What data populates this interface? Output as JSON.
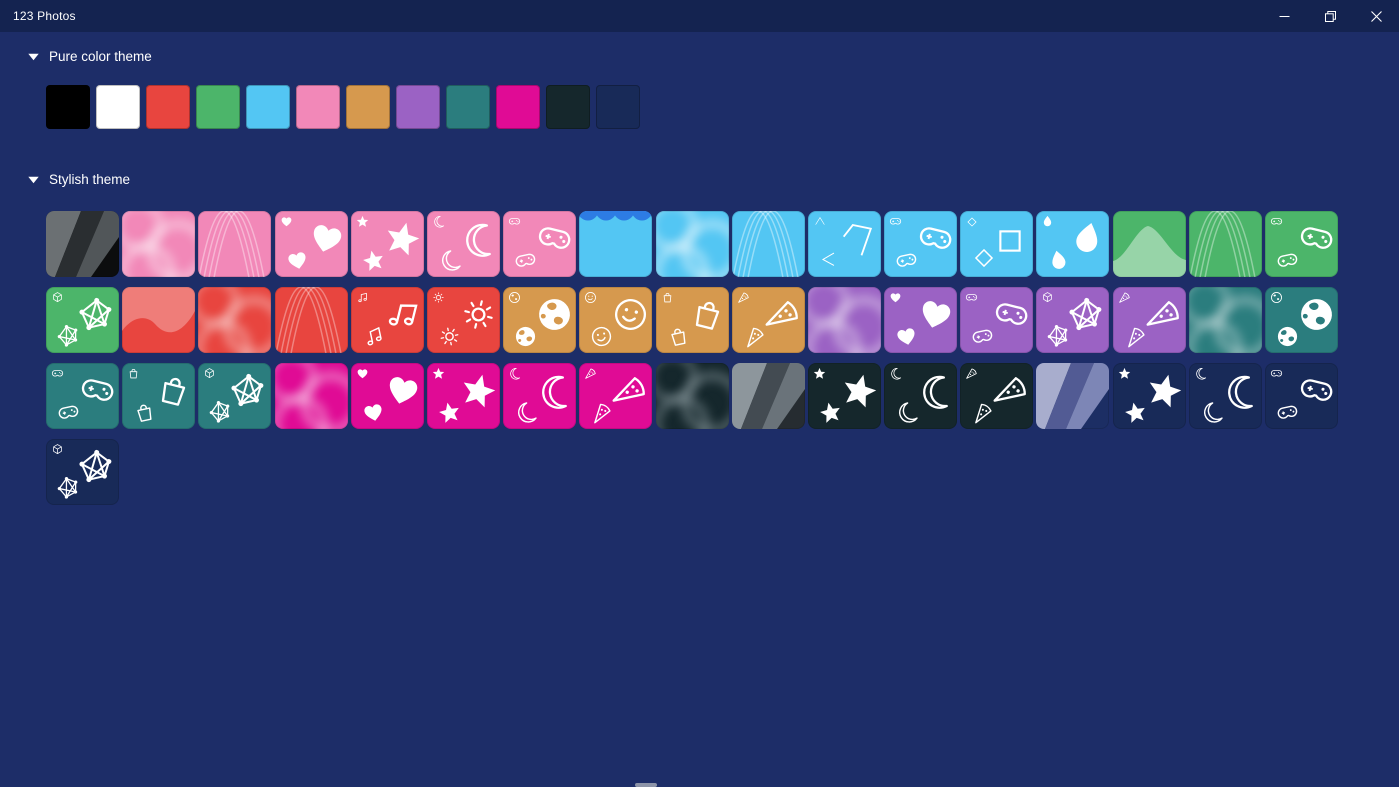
{
  "window": {
    "title": "123 Photos",
    "controls": [
      {
        "name": "minimize"
      },
      {
        "name": "restore"
      },
      {
        "name": "close"
      }
    ]
  },
  "sections": {
    "pure": {
      "label": "Pure color theme"
    },
    "stylish": {
      "label": "Stylish theme"
    }
  },
  "colors": {
    "background": "#1d2d68",
    "titlebar": "#142350",
    "text": "#ffffff",
    "scrollbar": "#8d94a8"
  },
  "pure_colors": [
    {
      "name": "black",
      "hex": "#000000"
    },
    {
      "name": "white",
      "hex": "#ffffff"
    },
    {
      "name": "red",
      "hex": "#e8453f"
    },
    {
      "name": "green",
      "hex": "#4cb56a"
    },
    {
      "name": "sky-blue",
      "hex": "#53c6f3"
    },
    {
      "name": "pink",
      "hex": "#f288b8"
    },
    {
      "name": "orange",
      "hex": "#d6994e"
    },
    {
      "name": "purple",
      "hex": "#9b62c4"
    },
    {
      "name": "teal",
      "hex": "#2b7d7e"
    },
    {
      "name": "magenta",
      "hex": "#e00b95"
    },
    {
      "name": "dark-teal",
      "hex": "#15272c"
    },
    {
      "name": "dark-navy",
      "hex": "#182a58"
    }
  ],
  "stylish_tiles": [
    {
      "name": "black-triangles",
      "bg": "#0c0d0e",
      "pattern": "triangles",
      "tri": [
        "#6b7073",
        "#2a2e31",
        "#515659"
      ]
    },
    {
      "name": "pink-bokeh",
      "bg": "#f288b8",
      "pattern": "bokeh",
      "fg": "rgba(255,255,255,0.38)"
    },
    {
      "name": "pink-waves",
      "bg": "#f288b8",
      "pattern": "waves",
      "fg": "rgba(255,255,255,0.38)"
    },
    {
      "name": "pink-hearts",
      "bg": "#f288b8",
      "pattern": "icons",
      "icon": "heart",
      "fg": "#ffffff"
    },
    {
      "name": "pink-stars",
      "bg": "#f288b8",
      "pattern": "icons",
      "icon": "star",
      "fg": "#ffffff"
    },
    {
      "name": "pink-moons",
      "bg": "#f288b8",
      "pattern": "icons",
      "icon": "moon",
      "fg": "#ffffff"
    },
    {
      "name": "pink-controllers",
      "bg": "#f288b8",
      "pattern": "icons",
      "icon": "controller",
      "fg": "#ffffff"
    },
    {
      "name": "blue-scallops",
      "bg": "#53c6f3",
      "pattern": "scallop",
      "accent": "#2d7ce4"
    },
    {
      "name": "blue-bokeh",
      "bg": "#53c6f3",
      "pattern": "bokeh",
      "fg": "rgba(255,255,255,0.4)"
    },
    {
      "name": "blue-waves",
      "bg": "#53c6f3",
      "pattern": "waves",
      "fg": "rgba(255,255,255,0.4)"
    },
    {
      "name": "blue-lines",
      "bg": "#53c6f3",
      "pattern": "lines",
      "fg": "#ffffff"
    },
    {
      "name": "blue-controllers",
      "bg": "#53c6f3",
      "pattern": "icons",
      "icon": "controller",
      "fg": "#ffffff"
    },
    {
      "name": "blue-shapes",
      "bg": "#53c6f3",
      "pattern": "shapes",
      "fg": "#ffffff"
    },
    {
      "name": "blue-drops",
      "bg": "#53c6f3",
      "pattern": "icons",
      "icon": "drop",
      "fg": "#ffffff"
    },
    {
      "name": "green-mountains",
      "bg": "#4cb56a",
      "pattern": "mountain",
      "variant": "peak",
      "fg": "rgba(255,255,255,0.42)"
    },
    {
      "name": "green-waves",
      "bg": "#4cb56a",
      "pattern": "waves",
      "fg": "rgba(255,255,255,0.38)"
    },
    {
      "name": "green-controllers",
      "bg": "#4cb56a",
      "pattern": "icons",
      "icon": "controller",
      "fg": "#ffffff"
    },
    {
      "name": "green-geometric",
      "bg": "#4cb56a",
      "pattern": "geometric",
      "fg": "#ffffff"
    },
    {
      "name": "red-mountains",
      "bg": "#e8453f",
      "pattern": "mountain",
      "variant": "wave",
      "fg": "rgba(255,255,255,0.3)"
    },
    {
      "name": "red-bokeh",
      "bg": "#e8453f",
      "pattern": "bokeh",
      "fg": "rgba(255,255,255,0.32)"
    },
    {
      "name": "red-waves",
      "bg": "#e8453f",
      "pattern": "waves",
      "fg": "rgba(255,255,255,0.34)"
    },
    {
      "name": "red-music",
      "bg": "#e8453f",
      "pattern": "icons",
      "icon": "music",
      "fg": "#ffffff"
    },
    {
      "name": "red-suns",
      "bg": "#e8453f",
      "pattern": "icons",
      "icon": "sun",
      "fg": "#ffffff"
    },
    {
      "name": "orange-globes",
      "bg": "#d6994e",
      "pattern": "icons",
      "icon": "globe",
      "fg": "#ffffff"
    },
    {
      "name": "orange-smileys",
      "bg": "#d6994e",
      "pattern": "icons",
      "icon": "smiley",
      "fg": "#ffffff"
    },
    {
      "name": "orange-bags",
      "bg": "#d6994e",
      "pattern": "icons",
      "icon": "bag",
      "fg": "#ffffff"
    },
    {
      "name": "orange-pizza",
      "bg": "#d6994e",
      "pattern": "icons",
      "icon": "pizza",
      "fg": "#ffffff"
    },
    {
      "name": "purple-bokeh",
      "bg": "#9b62c4",
      "pattern": "bokeh",
      "fg": "rgba(255,255,255,0.34)"
    },
    {
      "name": "purple-hearts",
      "bg": "#9b62c4",
      "pattern": "icons",
      "icon": "heart",
      "fg": "#ffffff"
    },
    {
      "name": "purple-controllers",
      "bg": "#9b62c4",
      "pattern": "icons",
      "icon": "controller",
      "fg": "#ffffff"
    },
    {
      "name": "purple-geometric",
      "bg": "#9b62c4",
      "pattern": "geometric",
      "fg": "#ffffff"
    },
    {
      "name": "purple-pizza",
      "bg": "#9b62c4",
      "pattern": "icons",
      "icon": "pizza",
      "fg": "#ffffff"
    },
    {
      "name": "teal-bokeh",
      "bg": "#2b7d7e",
      "pattern": "bokeh",
      "fg": "rgba(255,255,255,0.3)"
    },
    {
      "name": "teal-globes",
      "bg": "#2b7d7e",
      "pattern": "icons",
      "icon": "globe",
      "fg": "#ffffff"
    },
    {
      "name": "teal-controllers",
      "bg": "#2b7d7e",
      "pattern": "icons",
      "icon": "controller",
      "fg": "#ffffff"
    },
    {
      "name": "teal-bags",
      "bg": "#2b7d7e",
      "pattern": "icons",
      "icon": "bag",
      "fg": "#ffffff"
    },
    {
      "name": "teal-geometric",
      "bg": "#2b7d7e",
      "pattern": "geometric",
      "fg": "#ffffff"
    },
    {
      "name": "magenta-bokeh",
      "bg": "#e00b95",
      "pattern": "bokeh",
      "fg": "rgba(255,255,255,0.34)"
    },
    {
      "name": "magenta-hearts",
      "bg": "#e00b95",
      "pattern": "icons",
      "icon": "heart",
      "fg": "#ffffff"
    },
    {
      "name": "magenta-stars",
      "bg": "#e00b95",
      "pattern": "icons",
      "icon": "star",
      "fg": "#ffffff"
    },
    {
      "name": "magenta-moons",
      "bg": "#e00b95",
      "pattern": "icons",
      "icon": "moon",
      "fg": "#ffffff"
    },
    {
      "name": "magenta-pizza",
      "bg": "#e00b95",
      "pattern": "icons",
      "icon": "pizza",
      "fg": "#ffffff"
    },
    {
      "name": "dark-bokeh",
      "bg": "#15272c",
      "pattern": "bokeh",
      "fg": "rgba(155,170,175,0.4)"
    },
    {
      "name": "gray-triangles",
      "bg": "#262c31",
      "pattern": "triangles",
      "tri": [
        "#8d969c",
        "#434b52",
        "#6a737a"
      ]
    },
    {
      "name": "dark-stars",
      "bg": "#15272c",
      "pattern": "icons",
      "icon": "star",
      "fg": "#ffffff"
    },
    {
      "name": "dark-moons",
      "bg": "#15272c",
      "pattern": "icons",
      "icon": "moon",
      "fg": "#ffffff"
    },
    {
      "name": "dark-pizza",
      "bg": "#15272c",
      "pattern": "icons",
      "icon": "pizza",
      "fg": "#ffffff"
    },
    {
      "name": "navy-triangles",
      "bg": "#1c2e64",
      "pattern": "triangles",
      "tri": [
        "#a8adcd",
        "#525b94",
        "#7d86b6"
      ]
    },
    {
      "name": "navy-stars",
      "bg": "#182a58",
      "pattern": "icons",
      "icon": "star",
      "fg": "#ffffff"
    },
    {
      "name": "navy-moons",
      "bg": "#182a58",
      "pattern": "icons",
      "icon": "moon",
      "fg": "#ffffff"
    },
    {
      "name": "navy-controllers",
      "bg": "#182a58",
      "pattern": "icons",
      "icon": "controller",
      "fg": "#ffffff"
    },
    {
      "name": "navy-geometric",
      "bg": "#182a58",
      "pattern": "geometric",
      "fg": "#ffffff"
    }
  ]
}
